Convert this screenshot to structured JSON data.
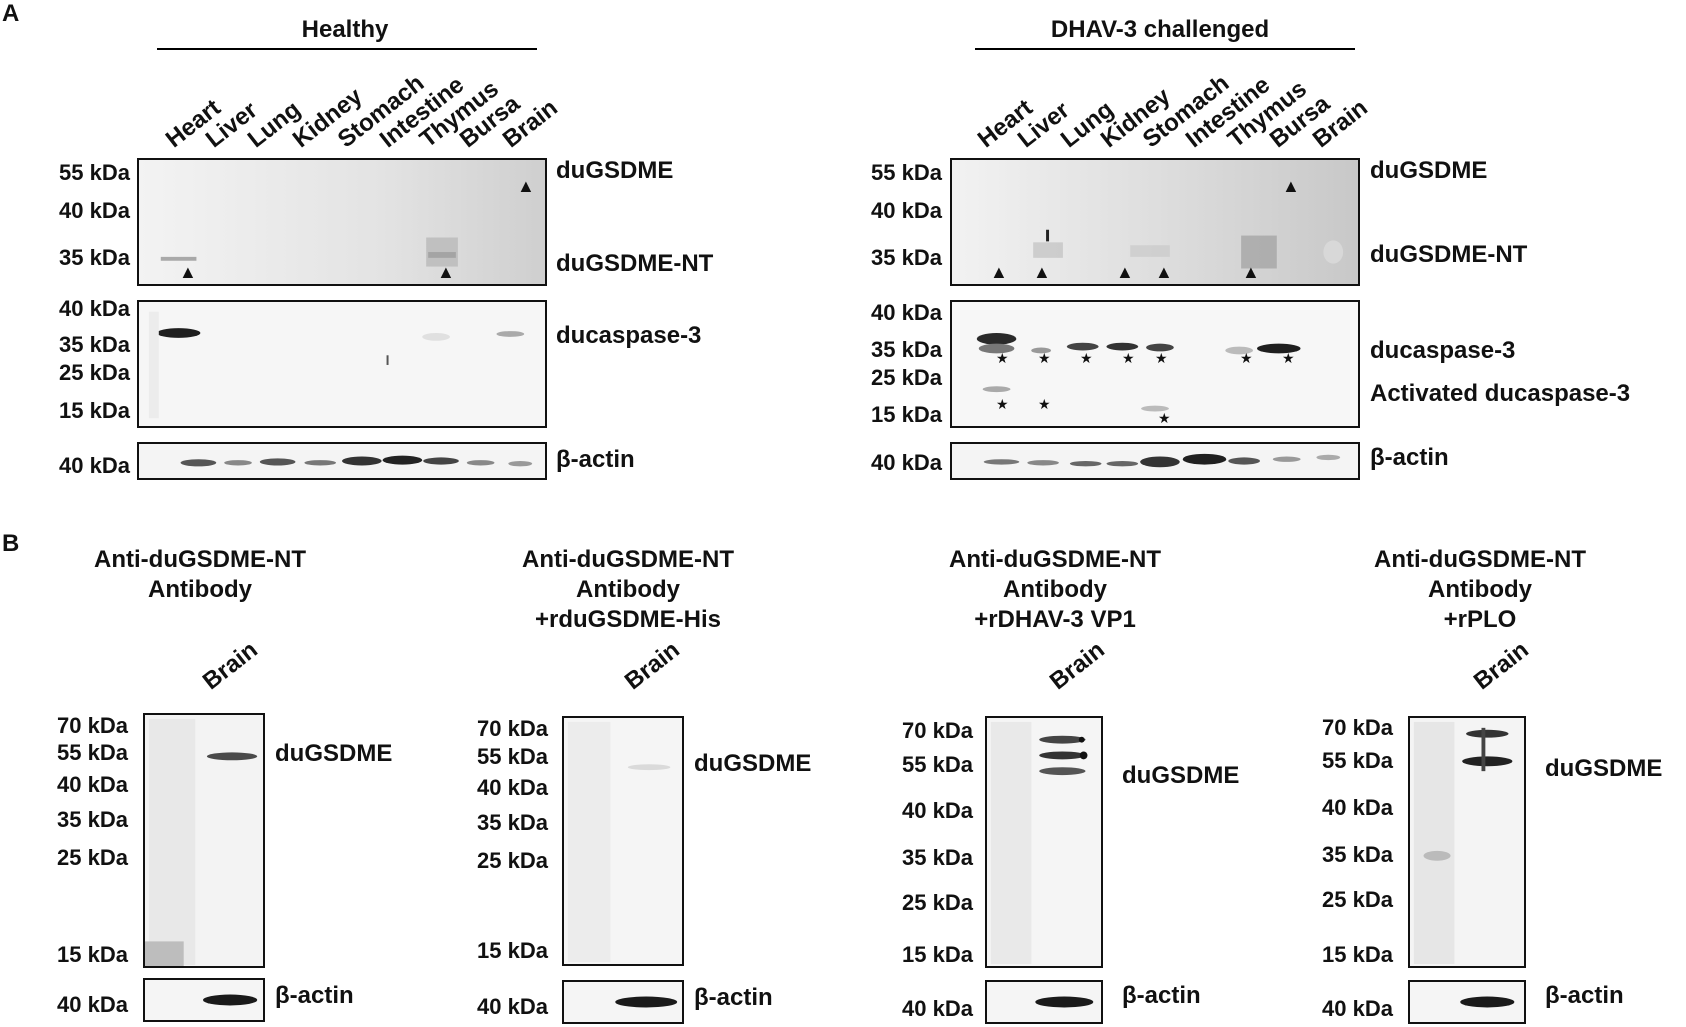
{
  "panel_a": {
    "letter": "A",
    "healthy": {
      "title": "Healthy",
      "lanes": [
        "Heart",
        "Liver",
        "Lung",
        "Kidney",
        "Stomach",
        "Intestine",
        "Thymus",
        "Bursa",
        "Brain"
      ],
      "gsdme_markers": [
        "55 kDa",
        "40 kDa",
        "35 kDa"
      ],
      "gsdme_labels": [
        "duGSDME",
        "duGSDME-NT"
      ],
      "casp_markers": [
        "40 kDa",
        "35 kDa",
        "25 kDa",
        "15 kDa"
      ],
      "casp_labels": [
        "ducaspase-3"
      ],
      "actin_marker": "40 kDa",
      "actin_label": "β-actin"
    },
    "challenged": {
      "title": "DHAV-3 challenged",
      "lanes": [
        "Heart",
        "Liver",
        "Lung",
        "Kidney",
        "Stomach",
        "Intestine",
        "Thymus",
        "Bursa",
        "Brain"
      ],
      "gsdme_markers": [
        "55 kDa",
        "40 kDa",
        "35 kDa"
      ],
      "gsdme_labels": [
        "duGSDME",
        "duGSDME-NT"
      ],
      "casp_markers": [
        "40 kDa",
        "35 kDa",
        "25 kDa",
        "15 kDa"
      ],
      "casp_labels": [
        "ducaspase-3",
        "Activated ducaspase-3"
      ],
      "actin_marker": "40 kDa",
      "actin_label": "β-actin"
    }
  },
  "panel_b": {
    "letter": "B",
    "blots": [
      {
        "title_lines": [
          "Anti-duGSDME-NT",
          "Antibody"
        ],
        "lane": "Brain",
        "markers": [
          "70 kDa",
          "55 kDa",
          "40 kDa",
          "35 kDa",
          "25 kDa",
          "15 kDa"
        ],
        "band_label": "duGSDME",
        "actin_marker": "40 kDa",
        "actin_label": "β-actin"
      },
      {
        "title_lines": [
          "Anti-duGSDME-NT",
          "Antibody",
          "+rduGSDME-His"
        ],
        "lane": "Brain",
        "markers": [
          "70 kDa",
          "55 kDa",
          "40 kDa",
          "35 kDa",
          "25 kDa",
          "15 kDa"
        ],
        "band_label": "duGSDME",
        "actin_marker": "40 kDa",
        "actin_label": "β-actin"
      },
      {
        "title_lines": [
          "Anti-duGSDME-NT",
          "Antibody",
          "+rDHAV-3 VP1"
        ],
        "lane": "Brain",
        "markers": [
          "70 kDa",
          "55 kDa",
          "40 kDa",
          "35 kDa",
          "25 kDa",
          "15 kDa"
        ],
        "band_label": "duGSDME",
        "actin_marker": "40 kDa",
        "actin_label": "β-actin"
      },
      {
        "title_lines": [
          "Anti-duGSDME-NT",
          "Antibody",
          "+rPLO"
        ],
        "lane": "Brain",
        "markers": [
          "70 kDa",
          "55 kDa",
          "40 kDa",
          "35 kDa",
          "25 kDa",
          "15 kDa"
        ],
        "band_label": "duGSDME",
        "actin_marker": "40 kDa",
        "actin_label": "β-actin"
      }
    ]
  },
  "symbols": {
    "triangle": "▲",
    "star": "★"
  },
  "colors": {
    "background": "#ffffff",
    "ink": "#111111",
    "blot_light": "#f2f2f2",
    "blot_grey": "#d9d9d9",
    "band": "#2a2a2a"
  }
}
